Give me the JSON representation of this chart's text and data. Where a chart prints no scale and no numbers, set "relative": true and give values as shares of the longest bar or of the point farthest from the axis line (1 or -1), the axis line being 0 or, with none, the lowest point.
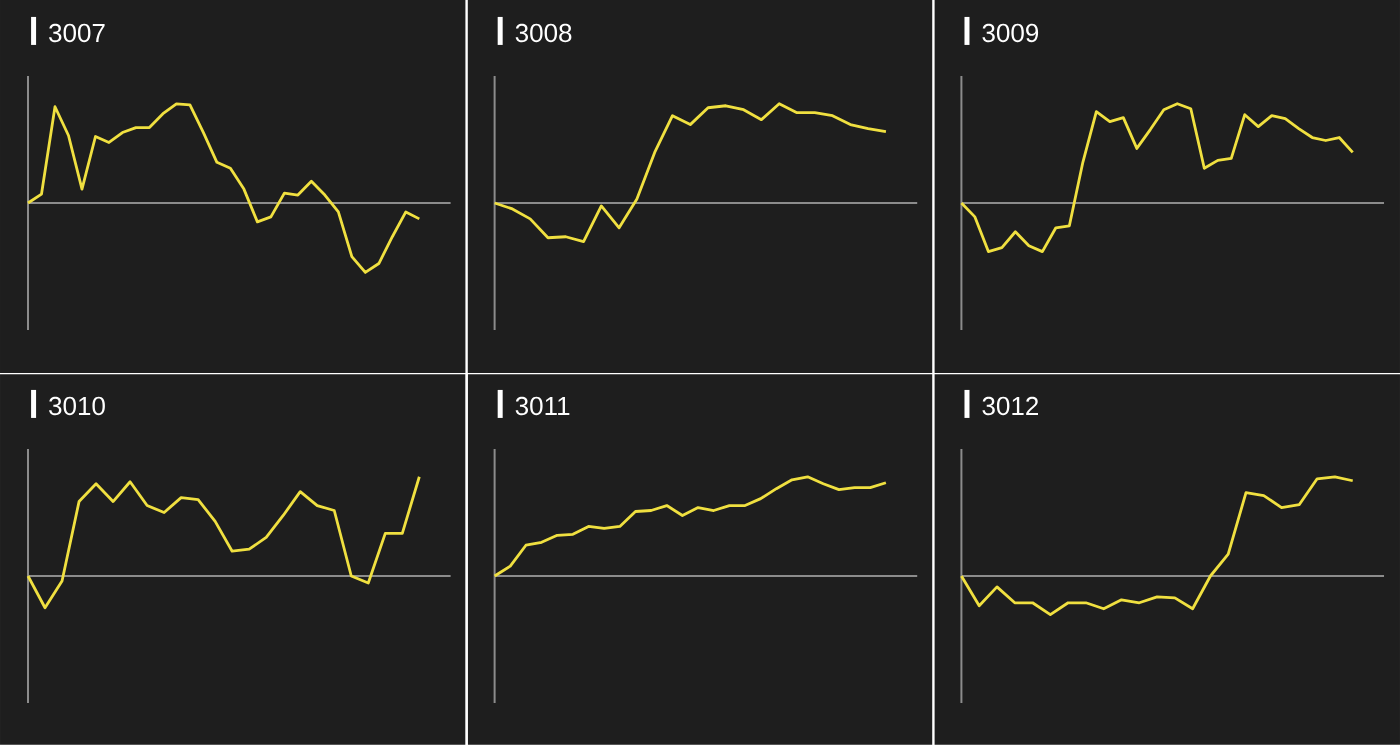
{
  "chart_data": [
    {
      "type": "line",
      "title": "3007",
      "relative": true,
      "color": "#f0e040",
      "categories": [
        null,
        null,
        null,
        null,
        null,
        null,
        null,
        null,
        null,
        null,
        null,
        null,
        null,
        null,
        null,
        null,
        null,
        null,
        null,
        null,
        null,
        null,
        null,
        null,
        null,
        null,
        null,
        null,
        null,
        null
      ],
      "values": [
        0,
        0.09,
        0.97,
        0.68,
        0.14,
        0.67,
        0.61,
        0.71,
        0.76,
        0.76,
        0.9,
        1.0,
        0.99,
        0.71,
        0.41,
        0.35,
        0.14,
        -0.19,
        -0.14,
        0.1,
        0.08,
        0.22,
        0.08,
        -0.09,
        -0.54,
        -0.7,
        -0.61,
        -0.34,
        -0.09,
        -0.16
      ]
    },
    {
      "type": "line",
      "title": "3008",
      "relative": true,
      "color": "#f0e040",
      "categories": [
        null,
        null,
        null,
        null,
        null,
        null,
        null,
        null,
        null,
        null,
        null,
        null,
        null,
        null,
        null,
        null,
        null,
        null,
        null,
        null,
        null,
        null,
        null
      ],
      "values": [
        0,
        -0.06,
        -0.16,
        -0.35,
        -0.34,
        -0.39,
        -0.03,
        -0.25,
        0.04,
        0.51,
        0.88,
        0.79,
        0.96,
        0.98,
        0.94,
        0.84,
        1.0,
        0.91,
        0.91,
        0.88,
        0.79,
        0.75,
        0.72
      ]
    },
    {
      "type": "line",
      "title": "3009",
      "relative": true,
      "color": "#f0e040",
      "categories": [
        null,
        null,
        null,
        null,
        null,
        null,
        null,
        null,
        null,
        null,
        null,
        null,
        null,
        null,
        null,
        null,
        null,
        null,
        null,
        null,
        null,
        null,
        null,
        null,
        null,
        null,
        null,
        null,
        null,
        null
      ],
      "values": [
        0,
        -0.14,
        -0.49,
        -0.45,
        -0.29,
        -0.43,
        -0.49,
        -0.25,
        -0.23,
        0.41,
        0.92,
        0.82,
        0.86,
        0.55,
        0.74,
        0.94,
        1.0,
        0.95,
        0.35,
        0.43,
        0.45,
        0.89,
        0.77,
        0.88,
        0.85,
        0.75,
        0.66,
        0.63,
        0.66,
        0.51
      ]
    },
    {
      "type": "line",
      "title": "3010",
      "relative": true,
      "color": "#f0e040",
      "categories": [
        null,
        null,
        null,
        null,
        null,
        null,
        null,
        null,
        null,
        null,
        null,
        null,
        null,
        null,
        null,
        null,
        null,
        null,
        null,
        null,
        null,
        null,
        null,
        null
      ],
      "values": [
        0,
        -0.32,
        -0.05,
        0.75,
        0.93,
        0.75,
        0.95,
        0.71,
        0.64,
        0.79,
        0.77,
        0.55,
        0.25,
        0.27,
        0.39,
        0.61,
        0.85,
        0.71,
        0.66,
        0,
        -0.07,
        0.43,
        0.43,
        1.0
      ]
    },
    {
      "type": "line",
      "title": "3011",
      "relative": true,
      "color": "#f0e040",
      "categories": [
        null,
        null,
        null,
        null,
        null,
        null,
        null,
        null,
        null,
        null,
        null,
        null,
        null,
        null,
        null,
        null,
        null,
        null,
        null,
        null,
        null,
        null,
        null,
        null,
        null,
        null
      ],
      "values": [
        0,
        0.1,
        0.31,
        0.34,
        0.41,
        0.42,
        0.5,
        0.48,
        0.5,
        0.65,
        0.66,
        0.71,
        0.61,
        0.69,
        0.66,
        0.71,
        0.71,
        0.78,
        0.88,
        0.97,
        1.0,
        0.93,
        0.87,
        0.89,
        0.89,
        0.94
      ]
    },
    {
      "type": "line",
      "title": "3012",
      "relative": true,
      "color": "#f0e040",
      "categories": [
        null,
        null,
        null,
        null,
        null,
        null,
        null,
        null,
        null,
        null,
        null,
        null,
        null,
        null,
        null,
        null,
        null,
        null,
        null,
        null,
        null,
        null,
        null
      ],
      "values": [
        0,
        -0.3,
        -0.11,
        -0.27,
        -0.27,
        -0.39,
        -0.27,
        -0.27,
        -0.33,
        -0.24,
        -0.27,
        -0.21,
        -0.22,
        -0.33,
        0,
        0.22,
        0.84,
        0.81,
        0.69,
        0.72,
        0.98,
        1.0,
        0.96
      ]
    }
  ]
}
